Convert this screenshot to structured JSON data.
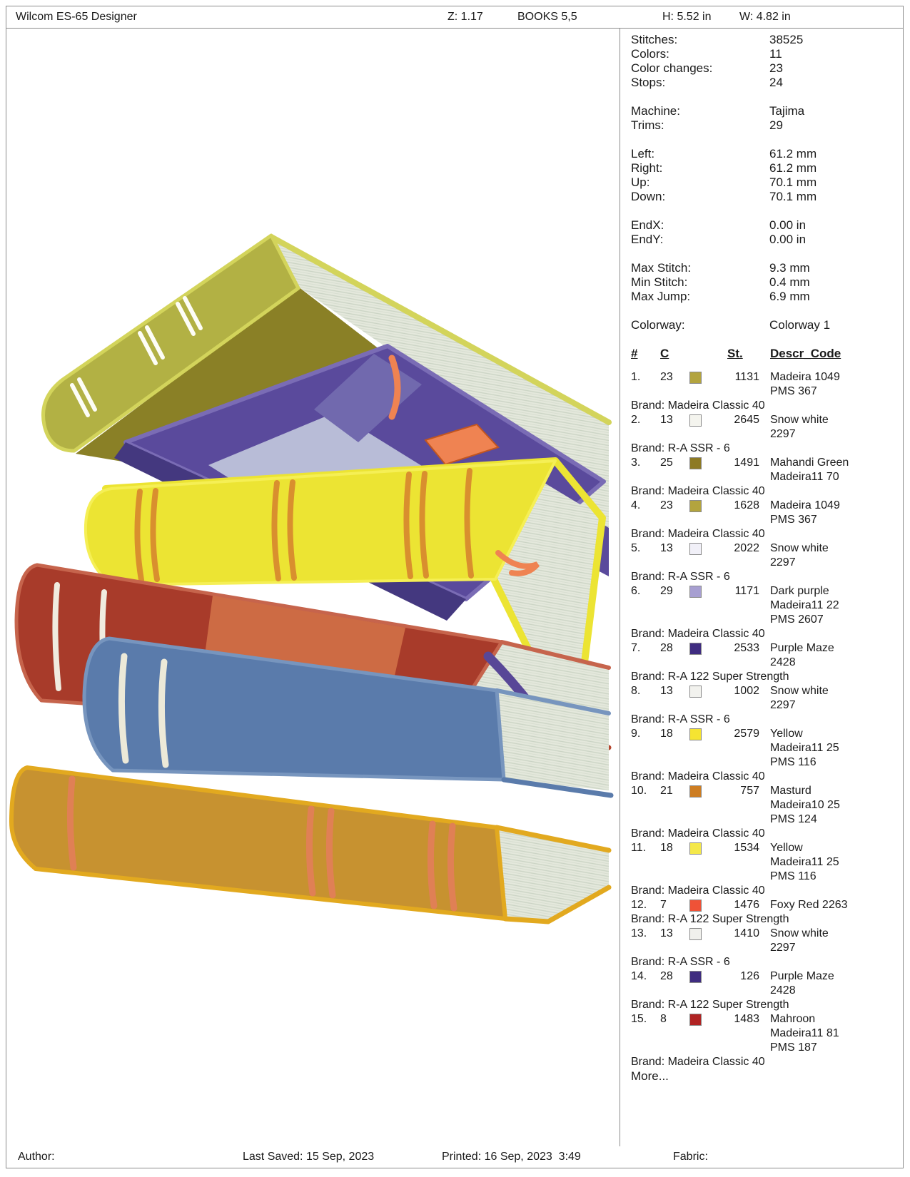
{
  "header": {
    "app_title": "Wilcom ES-65 Designer",
    "zoom_level": "Z: 1.17",
    "design_name": "BOOKS 5,5",
    "height_label": "H: 5.52 in",
    "width_label": "W: 4.82 in"
  },
  "footer": {
    "author_label": "Author:",
    "last_saved": "Last Saved: 15 Sep, 2023",
    "printed": "Printed: 16 Sep, 2023  3:49",
    "fabric_label": "Fabric:"
  },
  "stats_groups": [
    [
      [
        "Stitches:",
        "38525"
      ],
      [
        "Colors:",
        "11"
      ],
      [
        "Color changes:",
        "23"
      ],
      [
        "Stops:",
        "24"
      ]
    ],
    [
      [
        "Machine:",
        "Tajima"
      ],
      [
        "Trims:",
        "29"
      ]
    ],
    [
      [
        "Left:",
        "61.2 mm"
      ],
      [
        "Right:",
        "61.2 mm"
      ],
      [
        "Up:",
        "70.1 mm"
      ],
      [
        "Down:",
        "70.1 mm"
      ]
    ],
    [
      [
        "EndX:",
        "0.00 in"
      ],
      [
        "EndY:",
        "0.00 in"
      ]
    ],
    [
      [
        "Max Stitch:",
        "9.3 mm"
      ],
      [
        "Min Stitch:",
        "0.4 mm"
      ],
      [
        "Max Jump:",
        "6.9 mm"
      ]
    ],
    [
      [
        "Colorway:",
        "Colorway 1"
      ]
    ]
  ],
  "thread_table": {
    "headers": {
      "num": "#",
      "c": "C",
      "st": "St.",
      "descr": "Descr_Code"
    },
    "more_label": "More...",
    "rows": [
      {
        "num": "1.",
        "c": "23",
        "swatch": "#b3a43e",
        "st": "1131",
        "descr": "Madeira 1049 PMS 367",
        "brand": "Brand: Madeira Classic 40"
      },
      {
        "num": "2.",
        "c": "13",
        "swatch": "#f4f4ee",
        "st": "2645",
        "descr": "Snow white 2297",
        "brand": "Brand: R-A SSR - 6"
      },
      {
        "num": "3.",
        "c": "25",
        "swatch": "#8d7a25",
        "st": "1491",
        "descr": "Mahandi Green Madeira11 70",
        "brand": "Brand: Madeira Classic 40"
      },
      {
        "num": "4.",
        "c": "23",
        "swatch": "#b3a43e",
        "st": "1628",
        "descr": "Madeira 1049 PMS 367",
        "brand": "Brand: Madeira Classic 40"
      },
      {
        "num": "5.",
        "c": "13",
        "swatch": "#f1f0f8",
        "st": "2022",
        "descr": "Snow white 2297",
        "brand": "Brand: R-A SSR - 6"
      },
      {
        "num": "6.",
        "c": "29",
        "swatch": "#a79fd1",
        "st": "1171",
        "descr": "Dark purple Madeira11 22 PMS 2607",
        "brand": "Brand: Madeira Classic 40"
      },
      {
        "num": "7.",
        "c": "28",
        "swatch": "#3f2c80",
        "st": "2533",
        "descr": "Purple Maze 2428",
        "brand": "Brand: R-A 122 Super Strength"
      },
      {
        "num": "8.",
        "c": "13",
        "swatch": "#f2f2ee",
        "st": "1002",
        "descr": "Snow white 2297",
        "brand": "Brand: R-A SSR - 6"
      },
      {
        "num": "9.",
        "c": "18",
        "swatch": "#f5e431",
        "st": "2579",
        "descr": "Yellow Madeira11 25 PMS 116",
        "brand": "Brand: Madeira Classic 40"
      },
      {
        "num": "10.",
        "c": "21",
        "swatch": "#cd7d22",
        "st": "757",
        "descr": "Masturd Madeira10 25 PMS 124",
        "brand": "Brand: Madeira Classic 40"
      },
      {
        "num": "11.",
        "c": "18",
        "swatch": "#f4e84a",
        "st": "1534",
        "descr": "Yellow Madeira11 25 PMS 116",
        "brand": "Brand: Madeira Classic 40"
      },
      {
        "num": "12.",
        "c": "7",
        "swatch": "#ef5237",
        "st": "1476",
        "descr": "Foxy Red 2263",
        "brand": "Brand: R-A 122 Super Strength"
      },
      {
        "num": "13.",
        "c": "13",
        "swatch": "#f0f0ec",
        "st": "1410",
        "descr": "Snow white 2297",
        "brand": "Brand: R-A SSR - 6"
      },
      {
        "num": "14.",
        "c": "28",
        "swatch": "#3f2c80",
        "st": "126",
        "descr": "Purple Maze 2428",
        "brand": "Brand: R-A 122 Super Strength"
      },
      {
        "num": "15.",
        "c": "8",
        "swatch": "#b02323",
        "st": "1483",
        "descr": "Mahroon Madeira11 81 PMS 187",
        "brand": "Brand: Madeira Classic 40"
      }
    ]
  },
  "design": {
    "subject": "stack of six embroidered books",
    "pages": "#e4e8dc",
    "pages_line": "#cbd4c5",
    "olive_cover": "#8a8026",
    "olive_spine": "#b2b144",
    "olive_piping": "#d3d45b",
    "white_stripe": "#fdfdf6",
    "purple_cover": "#5a4a9c",
    "purple_panel": "#b8bcd7",
    "purple_band": "#7169ae",
    "purple_dark": "#44387f",
    "purple_piping": "#7a6cb5",
    "orange_accent": "#ef8352",
    "yellow_cover": "#ece433",
    "yellow_piping": "#f5ef55",
    "yellow_band": "#d98f2e",
    "red_cover": "#a83b2a",
    "red_panel": "#cd6b44",
    "red_piping": "#c6644c",
    "ribbon_purple": "#584797",
    "blue_cover": "#5a7bab",
    "blue_piping": "#7795be",
    "cream_stripe": "#ece9d8",
    "mustard_cover": "#c79230",
    "mustard_piping": "#e2a91f",
    "salmon_stripe": "#e08055"
  }
}
